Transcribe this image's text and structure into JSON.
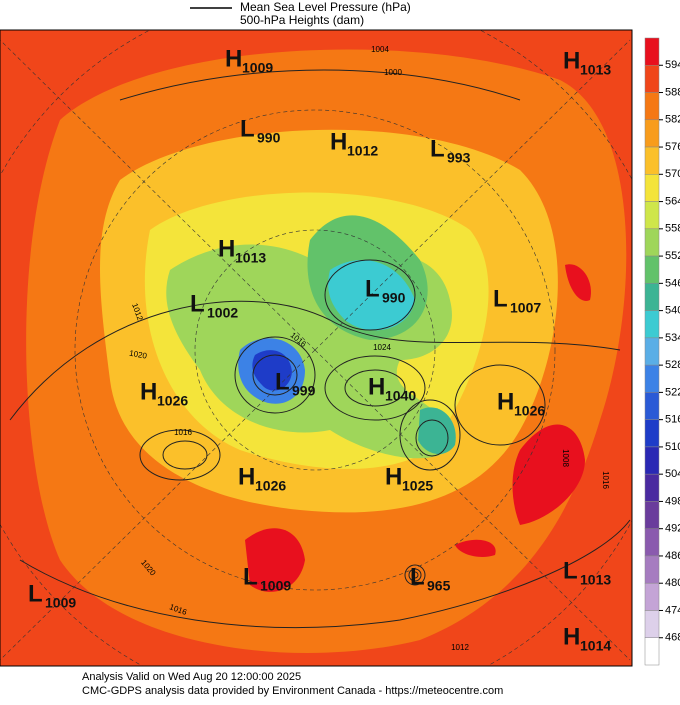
{
  "header": {
    "legend": [
      "Mean Sea Level Pressure (hPa)",
      "500-hPa Heights (dam)"
    ]
  },
  "centers": [
    {
      "type": "H",
      "value": 1009
    },
    {
      "type": "H",
      "value": 1013
    },
    {
      "type": "L",
      "value": 990
    },
    {
      "type": "H",
      "value": 1012
    },
    {
      "type": "L",
      "value": 993
    },
    {
      "type": "H",
      "value": 1013
    },
    {
      "type": "L",
      "value": 1002
    },
    {
      "type": "L",
      "value": 990
    },
    {
      "type": "L",
      "value": 1007
    },
    {
      "type": "L",
      "value": 999
    },
    {
      "type": "H",
      "value": 1026
    },
    {
      "type": "H",
      "value": 1040
    },
    {
      "type": "H",
      "value": 1026
    },
    {
      "type": "H",
      "value": 1026
    },
    {
      "type": "H",
      "value": 1025
    },
    {
      "type": "L",
      "value": 1009
    },
    {
      "type": "L",
      "value": 965
    },
    {
      "type": "L",
      "value": 1013
    },
    {
      "type": "L",
      "value": 1009
    },
    {
      "type": "H",
      "value": 1014
    }
  ],
  "isobar_labels": [
    1004,
    1000,
    1012,
    1020,
    1016,
    1016,
    1024,
    1008,
    1016,
    1020,
    1016,
    1012
  ],
  "colorbar": {
    "ticks": [
      594,
      588,
      582,
      576,
      570,
      564,
      558,
      552,
      546,
      540,
      534,
      528,
      522,
      516,
      510,
      504,
      498,
      492,
      486,
      480,
      474,
      468
    ],
    "colors": [
      "#e8101e",
      "#f0461a",
      "#f57814",
      "#f89c1c",
      "#fbc02a",
      "#f4e43a",
      "#cfe64a",
      "#9fd65a",
      "#62c26a",
      "#3cb494",
      "#3ccbd2",
      "#5aaee6",
      "#3c82e6",
      "#2a5ad6",
      "#1e3cc8",
      "#2a28b4",
      "#4a2aa0",
      "#6a3c9c",
      "#8a5aae",
      "#a67cc0",
      "#c4a4d6",
      "#ddd0ea",
      "#ffffff"
    ]
  },
  "footer": [
    "Analysis Valid on Wed Aug 20 12:00:00 2025",
    "CMC-GDPS analysis data provided by Environment Canada - https://meteocentre.com"
  ]
}
